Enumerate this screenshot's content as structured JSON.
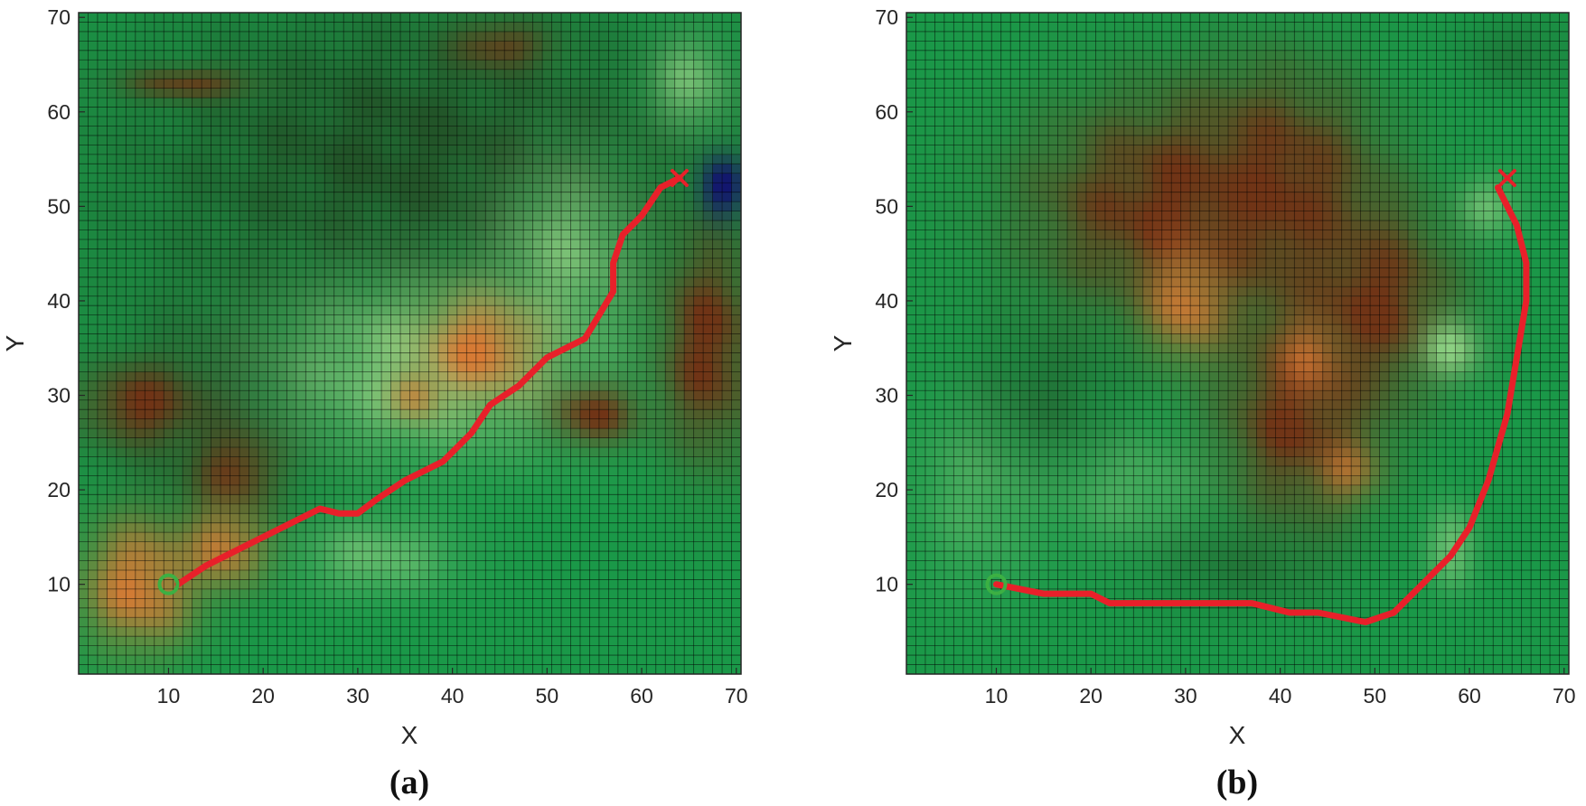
{
  "chart_data": [
    {
      "type": "heatmap",
      "caption": "(a)",
      "xlabel": "X",
      "ylabel": "Y",
      "xlim": [
        1,
        70
      ],
      "ylim": [
        1,
        70
      ],
      "xticks": [
        10,
        20,
        30,
        40,
        50,
        60,
        70
      ],
      "yticks": [
        10,
        20,
        30,
        40,
        50,
        60,
        70
      ],
      "grid": true,
      "start": {
        "x": 10,
        "y": 10,
        "marker": "circle",
        "color": "#3cb043"
      },
      "goal": {
        "x": 64,
        "y": 53,
        "marker": "x",
        "color": "#e8202a"
      },
      "path": {
        "color": "#e8202a",
        "x": [
          11,
          14,
          18,
          22,
          26,
          28,
          30,
          32,
          35,
          39,
          42,
          44,
          47,
          50,
          54,
          57,
          57,
          58,
          60,
          62,
          64
        ],
        "y": [
          10,
          12,
          14,
          16,
          18,
          17.5,
          17.5,
          19,
          21,
          23,
          26,
          29,
          31,
          34,
          36,
          41,
          44,
          47,
          49,
          52,
          53
        ]
      },
      "terrain": [
        {
          "kind": "dark",
          "cx": 36,
          "cy": 55,
          "rx": 40,
          "ry": 22,
          "w": 0.95
        },
        {
          "kind": "dark",
          "cx": 15,
          "cy": 28,
          "rx": 14,
          "ry": 16,
          "w": 0.8
        },
        {
          "kind": "light",
          "cx": 38,
          "cy": 33,
          "rx": 20,
          "ry": 11,
          "w": 0.9
        },
        {
          "kind": "light",
          "cx": 52,
          "cy": 45,
          "rx": 9,
          "ry": 12,
          "w": 0.7
        },
        {
          "kind": "light",
          "cx": 32,
          "cy": 13,
          "rx": 10,
          "ry": 5,
          "w": 0.6
        },
        {
          "kind": "light",
          "cx": 65,
          "cy": 63,
          "rx": 5,
          "ry": 6,
          "w": 0.7
        },
        {
          "kind": "brown",
          "cx": 7,
          "cy": 29,
          "rx": 7,
          "ry": 5,
          "w": 1
        },
        {
          "kind": "brown",
          "cx": 17,
          "cy": 22,
          "rx": 5,
          "ry": 5,
          "w": 0.9
        },
        {
          "kind": "brown",
          "cx": 67,
          "cy": 35,
          "rx": 6,
          "ry": 14,
          "w": 1
        },
        {
          "kind": "brown",
          "cx": 55,
          "cy": 28,
          "rx": 6,
          "ry": 4,
          "w": 0.9
        },
        {
          "kind": "brown",
          "cx": 12,
          "cy": 63,
          "rx": 8,
          "ry": 2,
          "w": 0.8
        },
        {
          "kind": "brown",
          "cx": 45,
          "cy": 67,
          "rx": 6,
          "ry": 3,
          "w": 0.8
        },
        {
          "kind": "orange",
          "cx": 7,
          "cy": 10,
          "rx": 7,
          "ry": 8,
          "w": 1
        },
        {
          "kind": "orange",
          "cx": 16,
          "cy": 14,
          "rx": 5,
          "ry": 5,
          "w": 0.9
        },
        {
          "kind": "orange",
          "cx": 43,
          "cy": 35,
          "rx": 7,
          "ry": 6,
          "w": 1
        },
        {
          "kind": "orange",
          "cx": 36,
          "cy": 30,
          "rx": 3,
          "ry": 3,
          "w": 0.8
        },
        {
          "kind": "water",
          "cx": 68.5,
          "cy": 52,
          "rx": 3,
          "ry": 4,
          "w": 1
        }
      ]
    },
    {
      "type": "heatmap",
      "caption": "(b)",
      "xlabel": "X",
      "ylabel": "Y",
      "xlim": [
        1,
        70
      ],
      "ylim": [
        1,
        70
      ],
      "xticks": [
        10,
        20,
        30,
        40,
        50,
        60,
        70
      ],
      "yticks": [
        10,
        20,
        30,
        40,
        50,
        60,
        70
      ],
      "grid": true,
      "start": {
        "x": 10,
        "y": 10,
        "marker": "circle",
        "color": "#3cb043"
      },
      "goal": {
        "x": 64,
        "y": 53,
        "marker": "x",
        "color": "#e8202a"
      },
      "path": {
        "color": "#e8202a",
        "x": [
          10,
          15,
          20,
          22,
          30,
          37,
          41,
          44,
          49,
          52,
          55,
          58,
          60,
          62,
          64,
          65,
          66,
          66,
          65,
          63
        ],
        "y": [
          10,
          9,
          9,
          8,
          8,
          8,
          7,
          7,
          6,
          7,
          10,
          13,
          16,
          21,
          28,
          34,
          40,
          44,
          48,
          52
        ]
      },
      "terrain": [
        {
          "kind": "brown",
          "cx": 28,
          "cy": 50,
          "rx": 18,
          "ry": 14,
          "w": 1
        },
        {
          "kind": "brown",
          "cx": 40,
          "cy": 52,
          "rx": 12,
          "ry": 14,
          "w": 1
        },
        {
          "kind": "brown",
          "cx": 42,
          "cy": 28,
          "rx": 10,
          "ry": 14,
          "w": 1
        },
        {
          "kind": "brown",
          "cx": 50,
          "cy": 40,
          "rx": 10,
          "ry": 12,
          "w": 1
        },
        {
          "kind": "orange",
          "cx": 30,
          "cy": 40,
          "rx": 5,
          "ry": 7,
          "w": 0.9
        },
        {
          "kind": "orange",
          "cx": 43,
          "cy": 34,
          "rx": 4,
          "ry": 5,
          "w": 0.7
        },
        {
          "kind": "orange",
          "cx": 47,
          "cy": 22,
          "rx": 4,
          "ry": 4,
          "w": 0.6
        },
        {
          "kind": "light",
          "cx": 58,
          "cy": 35,
          "rx": 4,
          "ry": 4,
          "w": 0.9
        },
        {
          "kind": "light",
          "cx": 58,
          "cy": 14,
          "rx": 3,
          "ry": 5,
          "w": 0.8
        },
        {
          "kind": "light",
          "cx": 62,
          "cy": 50,
          "rx": 4,
          "ry": 4,
          "w": 0.6
        },
        {
          "kind": "light",
          "cx": 8,
          "cy": 20,
          "rx": 8,
          "ry": 12,
          "w": 0.4
        },
        {
          "kind": "light",
          "cx": 24,
          "cy": 20,
          "rx": 10,
          "ry": 8,
          "w": 0.4
        },
        {
          "kind": "dark",
          "cx": 15,
          "cy": 30,
          "rx": 10,
          "ry": 10,
          "w": 0.5
        },
        {
          "kind": "dark",
          "cx": 35,
          "cy": 12,
          "rx": 12,
          "ry": 6,
          "w": 0.4
        },
        {
          "kind": "dark",
          "cx": 65,
          "cy": 66,
          "rx": 8,
          "ry": 5,
          "w": 0.4
        }
      ]
    }
  ]
}
